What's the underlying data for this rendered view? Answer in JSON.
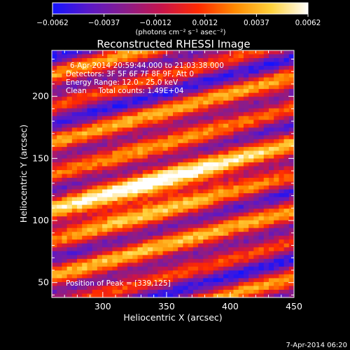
{
  "colorbar": {
    "ticks": [
      -0.0062,
      -0.0037,
      -0.0012,
      0.0012,
      0.0037,
      0.0062
    ],
    "tick_labels": [
      "−0.0062",
      "−0.0037",
      "−0.0012",
      "0.0012",
      "0.0037",
      "0.0062"
    ],
    "unit_label": "(photons cm⁻² s⁻¹ asec⁻²)",
    "range": [
      -0.0062,
      0.0062
    ],
    "colormap": [
      "#1414ff",
      "#5a18c8",
      "#8a1c8a",
      "#c8144a",
      "#ff2a00",
      "#ff8a00",
      "#ffd23c",
      "#ffffff"
    ]
  },
  "chart_data": {
    "type": "heatmap",
    "title": "Reconstructed RHESSI Image",
    "xlabel": "Heliocentric X (arcsec)",
    "ylabel": "Heliocentric Y (arcsec)",
    "xlim": [
      260,
      450
    ],
    "ylim": [
      38,
      237
    ],
    "xticks": [
      300,
      350,
      400,
      450
    ],
    "yticks": [
      50,
      100,
      150,
      200
    ],
    "peak": [
      339,
      125
    ],
    "annotations": [
      "6-Apr-2014 20:59:44.000 to 21:03:38.000",
      "Detectors: 3F 5F 6F 7F 8F 9F, Att 0",
      "Energy Range: 12.0 - 25.0 keV",
      "Clean     Total counts: 1.49E+04",
      "Position of Peak = [339,125]"
    ]
  },
  "footer": {
    "timestamp": "7-Apr-2014 06:20"
  }
}
